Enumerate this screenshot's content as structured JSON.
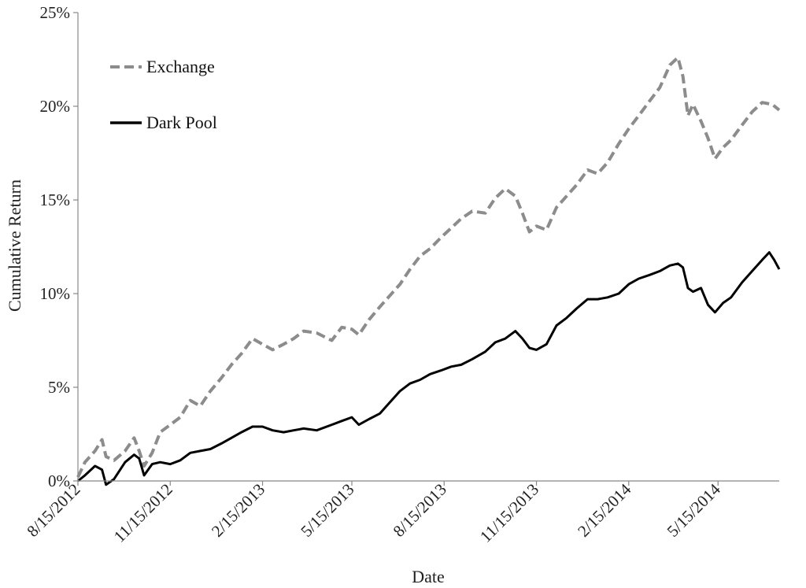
{
  "chart_data": {
    "type": "line",
    "title": "",
    "xlabel": "Date",
    "ylabel": "Cumulative Return",
    "ylim": [
      0,
      25
    ],
    "yticks": [
      "0%",
      "5%",
      "10%",
      "15%",
      "20%",
      "25%"
    ],
    "xlim": [
      "2012-08-15",
      "2014-07-15"
    ],
    "xticks": [
      "8/15/2012",
      "11/15/2012",
      "2/15/2013",
      "5/15/2013",
      "8/15/2013",
      "11/15/2013",
      "2/15/2014",
      "5/15/2014"
    ],
    "legend_position": "top-left",
    "grid": false,
    "series": [
      {
        "name": "Exchange",
        "color": "#8c8c8c",
        "dash": "dashed",
        "points": [
          [
            "2012-08-15",
            0.2
          ],
          [
            "2012-08-22",
            1.0
          ],
          [
            "2012-09-01",
            1.6
          ],
          [
            "2012-09-08",
            2.2
          ],
          [
            "2012-09-12",
            1.3
          ],
          [
            "2012-09-20",
            1.1
          ],
          [
            "2012-10-01",
            1.6
          ],
          [
            "2012-10-10",
            2.3
          ],
          [
            "2012-10-15",
            1.6
          ],
          [
            "2012-10-20",
            0.8
          ],
          [
            "2012-10-28",
            1.5
          ],
          [
            "2012-11-05",
            2.6
          ],
          [
            "2012-11-15",
            3.0
          ],
          [
            "2012-11-25",
            3.4
          ],
          [
            "2012-12-05",
            4.3
          ],
          [
            "2012-12-15",
            4.0
          ],
          [
            "2012-12-25",
            4.8
          ],
          [
            "2013-01-05",
            5.5
          ],
          [
            "2013-01-15",
            6.2
          ],
          [
            "2013-01-25",
            6.8
          ],
          [
            "2013-02-05",
            7.6
          ],
          [
            "2013-02-15",
            7.3
          ],
          [
            "2013-02-25",
            7.0
          ],
          [
            "2013-03-08",
            7.3
          ],
          [
            "2013-03-18",
            7.6
          ],
          [
            "2013-03-28",
            8.0
          ],
          [
            "2013-04-10",
            7.9
          ],
          [
            "2013-04-25",
            7.5
          ],
          [
            "2013-05-05",
            8.2
          ],
          [
            "2013-05-15",
            8.1
          ],
          [
            "2013-05-22",
            7.8
          ],
          [
            "2013-06-01",
            8.6
          ],
          [
            "2013-06-12",
            9.3
          ],
          [
            "2013-06-22",
            9.9
          ],
          [
            "2013-07-02",
            10.5
          ],
          [
            "2013-07-12",
            11.3
          ],
          [
            "2013-07-22",
            12.0
          ],
          [
            "2013-08-01",
            12.4
          ],
          [
            "2013-08-12",
            13.0
          ],
          [
            "2013-08-22",
            13.5
          ],
          [
            "2013-09-01",
            14.0
          ],
          [
            "2013-09-12",
            14.4
          ],
          [
            "2013-09-25",
            14.3
          ],
          [
            "2013-10-05",
            15.1
          ],
          [
            "2013-10-15",
            15.6
          ],
          [
            "2013-10-25",
            15.2
          ],
          [
            "2013-11-01",
            14.3
          ],
          [
            "2013-11-08",
            13.3
          ],
          [
            "2013-11-15",
            13.6
          ],
          [
            "2013-11-25",
            13.4
          ],
          [
            "2013-12-05",
            14.6
          ],
          [
            "2013-12-15",
            15.2
          ],
          [
            "2013-12-25",
            15.8
          ],
          [
            "2014-01-05",
            16.6
          ],
          [
            "2014-01-15",
            16.4
          ],
          [
            "2014-01-25",
            17.0
          ],
          [
            "2014-02-05",
            18.0
          ],
          [
            "2014-02-15",
            18.8
          ],
          [
            "2014-02-25",
            19.5
          ],
          [
            "2014-03-08",
            20.3
          ],
          [
            "2014-03-18",
            21.0
          ],
          [
            "2014-03-28",
            22.2
          ],
          [
            "2014-04-05",
            22.6
          ],
          [
            "2014-04-10",
            21.6
          ],
          [
            "2014-04-15",
            19.5
          ],
          [
            "2014-04-20",
            20.1
          ],
          [
            "2014-04-28",
            19.2
          ],
          [
            "2014-05-05",
            18.3
          ],
          [
            "2014-05-12",
            17.2
          ],
          [
            "2014-05-20",
            17.8
          ],
          [
            "2014-05-28",
            18.2
          ],
          [
            "2014-06-08",
            19.0
          ],
          [
            "2014-06-18",
            19.7
          ],
          [
            "2014-06-28",
            20.2
          ],
          [
            "2014-07-08",
            20.1
          ],
          [
            "2014-07-15",
            19.8
          ]
        ]
      },
      {
        "name": "Dark Pool",
        "color": "#000000",
        "dash": "solid",
        "points": [
          [
            "2012-08-15",
            0.0
          ],
          [
            "2012-08-22",
            0.3
          ],
          [
            "2012-09-01",
            0.8
          ],
          [
            "2012-09-08",
            0.6
          ],
          [
            "2012-09-12",
            -0.2
          ],
          [
            "2012-09-20",
            0.1
          ],
          [
            "2012-10-01",
            1.0
          ],
          [
            "2012-10-10",
            1.4
          ],
          [
            "2012-10-15",
            1.2
          ],
          [
            "2012-10-20",
            0.3
          ],
          [
            "2012-10-28",
            0.9
          ],
          [
            "2012-11-05",
            1.0
          ],
          [
            "2012-11-15",
            0.9
          ],
          [
            "2012-11-25",
            1.1
          ],
          [
            "2012-12-05",
            1.5
          ],
          [
            "2012-12-15",
            1.6
          ],
          [
            "2012-12-25",
            1.7
          ],
          [
            "2013-01-05",
            2.0
          ],
          [
            "2013-01-15",
            2.3
          ],
          [
            "2013-01-25",
            2.6
          ],
          [
            "2013-02-05",
            2.9
          ],
          [
            "2013-02-15",
            2.9
          ],
          [
            "2013-02-25",
            2.7
          ],
          [
            "2013-03-08",
            2.6
          ],
          [
            "2013-03-18",
            2.7
          ],
          [
            "2013-03-28",
            2.8
          ],
          [
            "2013-04-10",
            2.7
          ],
          [
            "2013-04-25",
            3.0
          ],
          [
            "2013-05-05",
            3.2
          ],
          [
            "2013-05-15",
            3.4
          ],
          [
            "2013-05-22",
            3.0
          ],
          [
            "2013-06-01",
            3.3
          ],
          [
            "2013-06-12",
            3.6
          ],
          [
            "2013-06-22",
            4.2
          ],
          [
            "2013-07-02",
            4.8
          ],
          [
            "2013-07-12",
            5.2
          ],
          [
            "2013-07-22",
            5.4
          ],
          [
            "2013-08-01",
            5.7
          ],
          [
            "2013-08-12",
            5.9
          ],
          [
            "2013-08-22",
            6.1
          ],
          [
            "2013-09-01",
            6.2
          ],
          [
            "2013-09-12",
            6.5
          ],
          [
            "2013-09-25",
            6.9
          ],
          [
            "2013-10-05",
            7.4
          ],
          [
            "2013-10-15",
            7.6
          ],
          [
            "2013-10-25",
            8.0
          ],
          [
            "2013-11-01",
            7.6
          ],
          [
            "2013-11-08",
            7.1
          ],
          [
            "2013-11-15",
            7.0
          ],
          [
            "2013-11-25",
            7.3
          ],
          [
            "2013-12-05",
            8.3
          ],
          [
            "2013-12-15",
            8.7
          ],
          [
            "2013-12-25",
            9.2
          ],
          [
            "2014-01-05",
            9.7
          ],
          [
            "2014-01-15",
            9.7
          ],
          [
            "2014-01-25",
            9.8
          ],
          [
            "2014-02-05",
            10.0
          ],
          [
            "2014-02-15",
            10.5
          ],
          [
            "2014-02-25",
            10.8
          ],
          [
            "2014-03-08",
            11.0
          ],
          [
            "2014-03-18",
            11.2
          ],
          [
            "2014-03-28",
            11.5
          ],
          [
            "2014-04-05",
            11.6
          ],
          [
            "2014-04-10",
            11.4
          ],
          [
            "2014-04-15",
            10.3
          ],
          [
            "2014-04-20",
            10.1
          ],
          [
            "2014-04-28",
            10.3
          ],
          [
            "2014-05-05",
            9.4
          ],
          [
            "2014-05-12",
            9.0
          ],
          [
            "2014-05-20",
            9.5
          ],
          [
            "2014-05-28",
            9.8
          ],
          [
            "2014-06-08",
            10.6
          ],
          [
            "2014-06-18",
            11.2
          ],
          [
            "2014-06-28",
            11.8
          ],
          [
            "2014-07-05",
            12.2
          ],
          [
            "2014-07-10",
            11.8
          ],
          [
            "2014-07-15",
            11.3
          ]
        ]
      }
    ]
  }
}
